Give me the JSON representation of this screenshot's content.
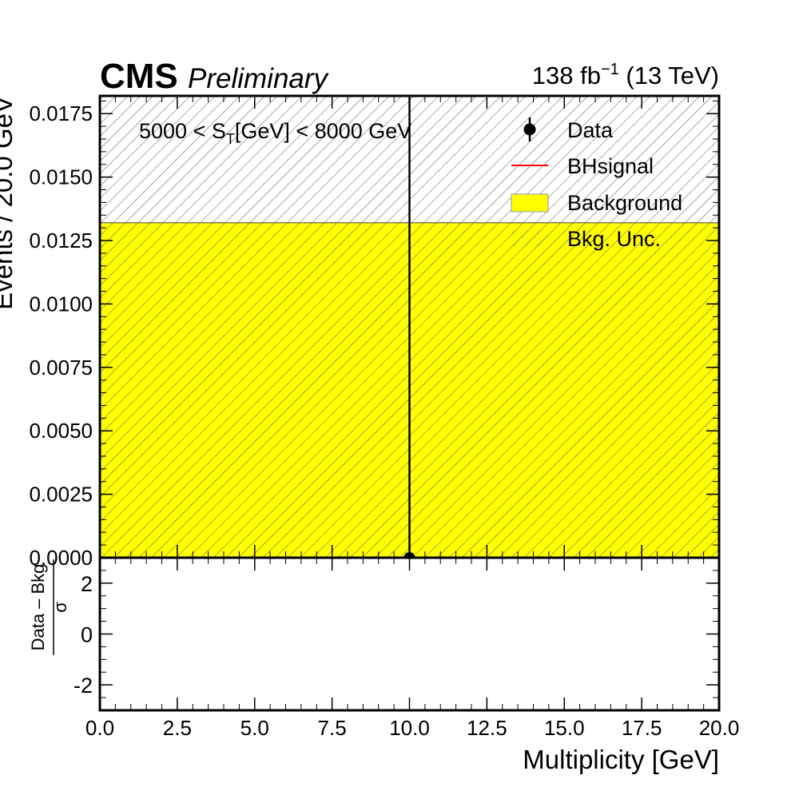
{
  "header": {
    "experiment": "CMS",
    "status": "Preliminary",
    "lumi": "138 fb",
    "lumi_exp": "−1",
    "energy": " (13 TeV)"
  },
  "chart_data": [
    {
      "type": "histogram",
      "panel": "main",
      "annotation": {
        "prefix": "5000 < S",
        "subscript": "T",
        "suffix": "[GeV] < 8000 GeV"
      },
      "ylabel": "Events / 20.0 GeV",
      "xlim": [
        0,
        20
      ],
      "ylim": [
        0,
        0.0182
      ],
      "grid": false,
      "legend_position": "top-right",
      "y_ticks": [
        "0.0000",
        "0.0025",
        "0.0050",
        "0.0075",
        "0.0100",
        "0.0125",
        "0.0150",
        "0.0175"
      ],
      "y_tick_values": [
        0,
        0.0025,
        0.005,
        0.0075,
        0.01,
        0.0125,
        0.015,
        0.0175
      ],
      "series": [
        {
          "name": "Background",
          "kind": "fill",
          "color": "#ffff00",
          "bins": [
            {
              "x0": 0,
              "x1": 20,
              "value": 0.0132
            }
          ]
        },
        {
          "name": "Bkg. Unc.",
          "kind": "hatch",
          "color": "#777777",
          "bins": [
            {
              "x0": 0,
              "x1": 20,
              "low": 0,
              "high": 0.0182
            }
          ]
        },
        {
          "name": "Data",
          "kind": "points",
          "color": "#000000",
          "points": [
            {
              "x": 10.0,
              "y": 0.0,
              "yerr_up": 0.0182
            }
          ]
        },
        {
          "name": "BHsignal",
          "kind": "line",
          "color": "#ff0000",
          "points": []
        }
      ],
      "legend": [
        {
          "label": "Data",
          "marker": "point"
        },
        {
          "label": "BHsignal",
          "marker": "line"
        },
        {
          "label": "Background",
          "marker": "box"
        },
        {
          "label": "Bkg. Unc.",
          "marker": "hatch"
        }
      ]
    },
    {
      "type": "scatter",
      "panel": "ratio",
      "ylabel_numerator": "Data – Bkg",
      "ylabel_denominator": "σ",
      "xlabel": "Multiplicity [GeV]",
      "xlim": [
        0,
        20
      ],
      "ylim": [
        -3,
        3
      ],
      "y_ticks": [
        "2",
        "0",
        "-2"
      ],
      "y_tick_values": [
        2,
        0,
        -2
      ],
      "x_ticks": [
        "0.0",
        "2.5",
        "5.0",
        "7.5",
        "10.0",
        "12.5",
        "15.0",
        "17.5",
        "20.0"
      ],
      "x_tick_values": [
        0,
        2.5,
        5,
        7.5,
        10,
        12.5,
        15,
        17.5,
        20
      ],
      "points": []
    }
  ]
}
